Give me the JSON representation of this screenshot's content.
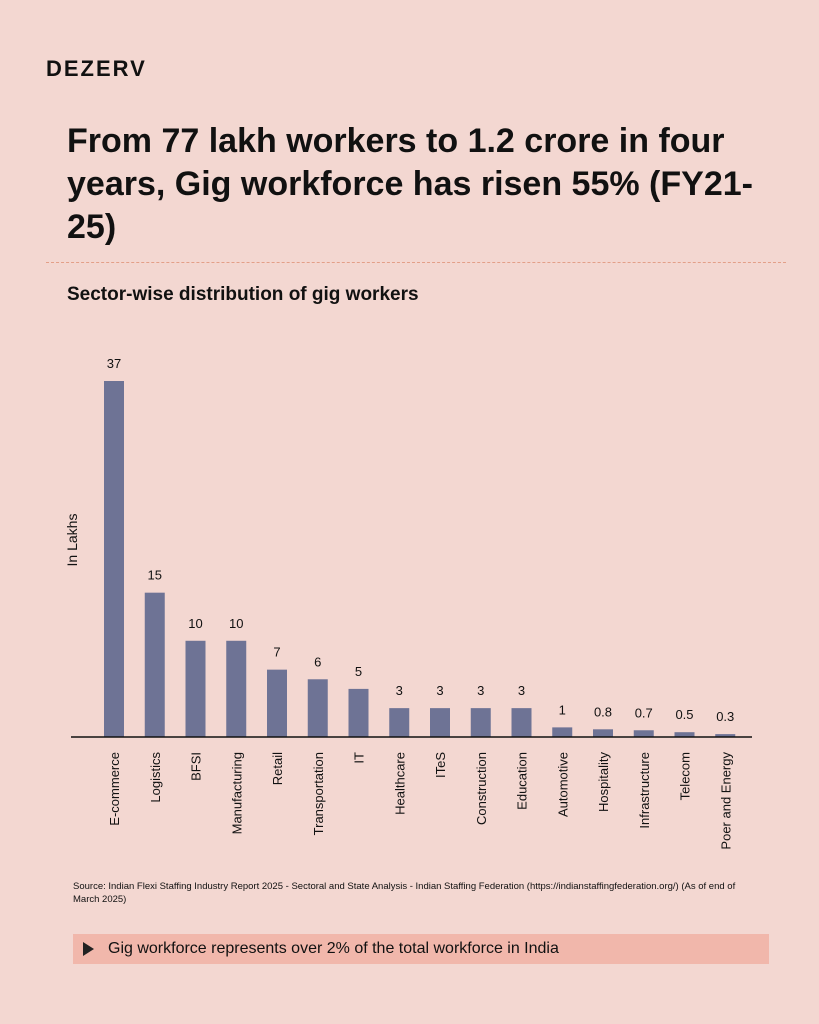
{
  "brand": "DEZERV",
  "headline": "From 77 lakh workers to 1.2 crore in four years, Gig workforce has risen 55% (FY21-25)",
  "source": "Source: Indian Flexi Staffing Industry Report 2025 - Sectoral and State Analysis - Indian Staffing Federation (https://indianstaffingfederation.org/) (As of end of March 2025)",
  "callout": {
    "text": "Gig workforce represents over 2% of the total workforce in India",
    "icon": "play-triangle-icon"
  },
  "colors": {
    "background": "#f3d7d1",
    "bar": "#6e7395",
    "callout": "#f1b7ab",
    "divider": "#e39f88"
  },
  "chart_data": {
    "type": "bar",
    "title": "Sector-wise distribution of gig workers",
    "ylabel": "In Lakhs",
    "xlabel": "",
    "ylim": [
      0,
      37
    ],
    "grid": false,
    "categories": [
      "E-commerce",
      "Logistics",
      "BFSI",
      "Manufacturing",
      "Retail",
      "Transportation",
      "IT",
      "Healthcare",
      "ITeS",
      "Construction",
      "Education",
      "Automotive",
      "Hospitality",
      "Infrastructure",
      "Telecom",
      "Poer and Energy"
    ],
    "values": [
      37,
      15,
      10,
      10,
      7,
      6,
      5,
      3,
      3,
      3,
      3,
      1,
      0.8,
      0.7,
      0.5,
      0.3
    ]
  }
}
